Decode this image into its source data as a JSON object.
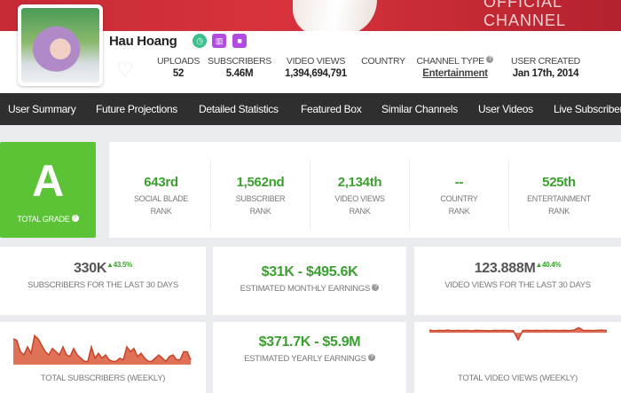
{
  "banner": {
    "text": "OFFICIAL CHANNEL"
  },
  "channel": {
    "name": "Hau Hoang",
    "badges": [
      "clock-icon",
      "bar-chart-icon",
      "video-camera-icon"
    ],
    "stats": [
      {
        "label": "UPLOADS",
        "value": "52"
      },
      {
        "label": "SUBSCRIBERS",
        "value": "5.46M"
      },
      {
        "label": "VIDEO VIEWS",
        "value": "1,394,694,791"
      },
      {
        "label": "COUNTRY",
        "value": ""
      },
      {
        "label": "CHANNEL TYPE",
        "value": "Entertainment"
      },
      {
        "label": "USER CREATED",
        "value": "Jan 17th, 2014"
      }
    ]
  },
  "nav": [
    "User Summary",
    "Future Projections",
    "Detailed Statistics",
    "Featured Box",
    "Similar Channels",
    "User Videos",
    "Live Subscriber Count"
  ],
  "grade": {
    "value": "A",
    "label": "TOTAL GRADE"
  },
  "ranks": [
    {
      "value": "643rd",
      "l1": "SOCIAL BLADE",
      "l2": "RANK"
    },
    {
      "value": "1,562nd",
      "l1": "SUBSCRIBER",
      "l2": "RANK"
    },
    {
      "value": "2,134th",
      "l1": "VIDEO VIEWS",
      "l2": "RANK"
    },
    {
      "value": "--",
      "l1": "COUNTRY",
      "l2": "RANK"
    },
    {
      "value": "525th",
      "l1": "ENTERTAINMENT",
      "l2": "RANK"
    }
  ],
  "summary": {
    "subs30": {
      "value": "330K",
      "delta": "▲43.5%",
      "label": "SUBSCRIBERS FOR THE LAST 30 DAYS"
    },
    "monthly": {
      "value": "$31K - $495.6K",
      "label": "ESTIMATED MONTHLY EARNINGS"
    },
    "views30": {
      "value": "123.888M",
      "delta": "▲40.4%",
      "label": "VIDEO VIEWS FOR THE LAST 30 DAYS"
    },
    "subsWeekly": {
      "label": "TOTAL SUBSCRIBERS (WEEKLY)"
    },
    "yearly": {
      "value": "$371.7K - $5.9M",
      "label": "ESTIMATED YEARLY EARNINGS"
    },
    "viewsWeekly": {
      "label": "TOTAL VIDEO VIEWS (WEEKLY)"
    }
  },
  "colors": {
    "accent": "#5cc236",
    "green_text": "#3aa02d",
    "nav": "#2f2f2f",
    "sparkline": "#d9583a"
  },
  "chart_data": [
    {
      "type": "area",
      "values": [
        8,
        7.5,
        4,
        3,
        5.5,
        3.5,
        9,
        8,
        6,
        4,
        3,
        5,
        4,
        3,
        5.5,
        3,
        2.5,
        5,
        3,
        2,
        1,
        1,
        5.5,
        2,
        3.5,
        2,
        3,
        1.5,
        1,
        1,
        2,
        1.5,
        5.5,
        4,
        5,
        2.5,
        3.5,
        2,
        1,
        1,
        2,
        3,
        2,
        1,
        2.5,
        3,
        1.5,
        1.5,
        4,
        4,
        1.5
      ]
    },
    {
      "type": "area",
      "values": [
        9.5,
        9.2,
        9.4,
        9.3,
        9.5,
        9.2,
        9.4,
        9.3,
        9.4,
        9.2,
        9.4,
        9.3,
        9.3,
        9.2,
        9.4,
        9.3,
        9.4,
        9.3,
        9.2,
        5.5,
        9.3,
        9.4,
        9.3,
        9.4,
        9.3,
        9.4,
        9.3,
        9.4,
        9.3,
        9.4,
        9.3,
        9.5,
        10.5,
        9.3,
        9.4,
        9.3,
        9.4,
        9.5,
        9.3
      ]
    }
  ]
}
